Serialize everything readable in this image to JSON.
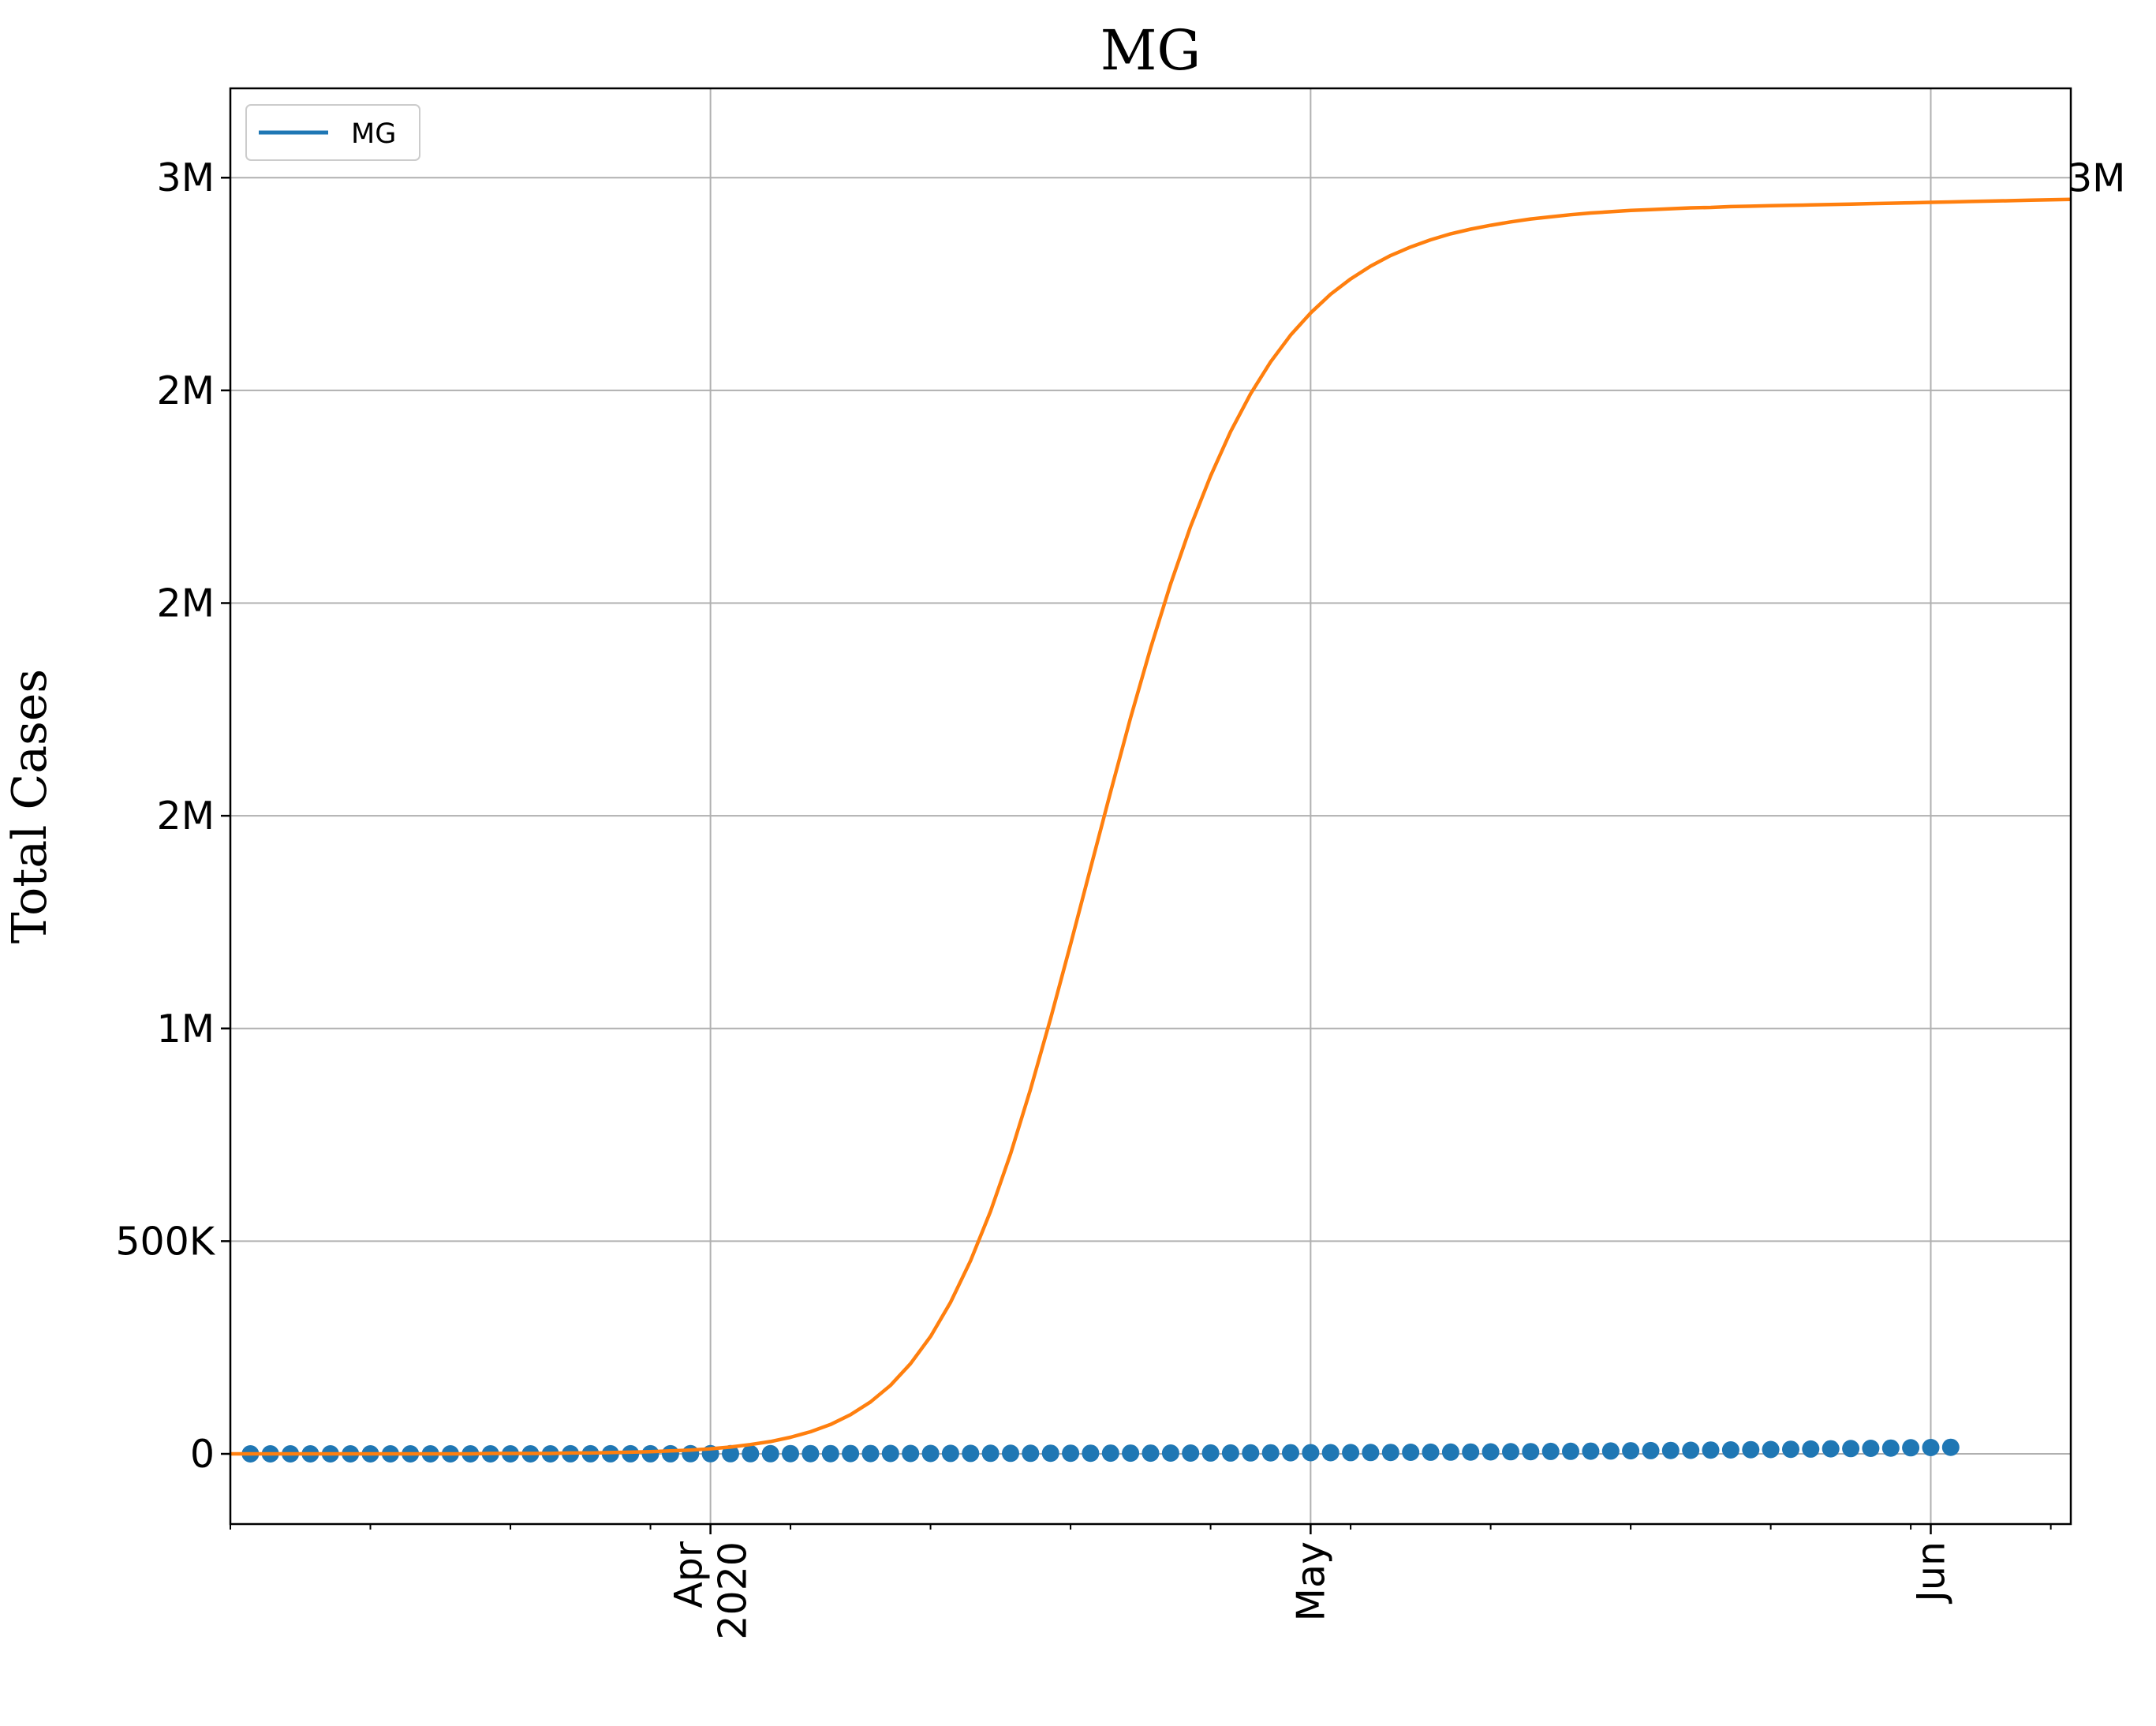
{
  "chart_data": {
    "type": "line",
    "title": "MG",
    "xlabel": "",
    "ylabel": "Total Cases",
    "x_range": [
      "2020-03-08",
      "2020-06-08"
    ],
    "ylim": [
      -165000,
      3210000
    ],
    "grid": true,
    "legend": {
      "placement": "top-left",
      "entries": [
        "MG"
      ]
    },
    "x_ticks": [
      {
        "date": "2020-04-01",
        "lines": [
          "Apr",
          "2020"
        ]
      },
      {
        "date": "2020-05-01",
        "lines": [
          "May"
        ]
      },
      {
        "date": "2020-06-01",
        "lines": [
          "Jun"
        ]
      }
    ],
    "y_ticks": [
      {
        "value": 0,
        "label": "0"
      },
      {
        "value": 500000,
        "label": "500K"
      },
      {
        "value": 1000000,
        "label": "1M"
      },
      {
        "value": 1500000,
        "label": "2M"
      },
      {
        "value": 2000000,
        "label": "2M"
      },
      {
        "value": 2500000,
        "label": "2M"
      },
      {
        "value": 3000000,
        "label": "3M"
      }
    ],
    "end_label": "3M",
    "series": [
      {
        "name": "MG",
        "kind": "scatter",
        "color": "#1f77b4",
        "x_start": "2020-03-09",
        "x_step_days": 1,
        "values": [
          1,
          1,
          1,
          1,
          2,
          4,
          7,
          15,
          20,
          29,
          38,
          55,
          83,
          103,
          128,
          133,
          153,
          189,
          205,
          231,
          261,
          314,
          370,
          397,
          430,
          486,
          498,
          525,
          559,
          614,
          698,
          803,
          879,
          940,
          1000,
          1079,
          1154,
          1248,
          1307,
          1378,
          1453,
          1526,
          1588,
          1655,
          1734,
          1795,
          1865,
          1953,
          2033,
          2131,
          2295,
          2442,
          2607,
          2793,
          2900,
          3033,
          3243,
          3460,
          3700,
          3937,
          4113,
          4360,
          4678,
          5012,
          5302,
          5700,
          6000,
          6349,
          6800,
          7221,
          7600,
          7987,
          8423,
          8924,
          9330,
          9800,
          10225,
          10757,
          11317,
          11844,
          12401,
          13034,
          13635,
          14263,
          14871,
          15500
        ]
      },
      {
        "name": "",
        "kind": "line",
        "color": "#ff7f0e",
        "x_start": "2020-03-08",
        "x_step_days": 1,
        "values": [
          0,
          0,
          0,
          0,
          0,
          0,
          0,
          0,
          0,
          0,
          0,
          0,
          0,
          1000,
          1000,
          1000,
          1000,
          2000,
          2000,
          3000,
          4000,
          5000,
          7000,
          9000,
          12000,
          16000,
          22000,
          29000,
          39000,
          52000,
          69000,
          92000,
          122000,
          161000,
          212000,
          276000,
          356000,
          454000,
          570000,
          705000,
          857000,
          1023000,
          1198000,
          1377000,
          1556000,
          1730000,
          1894000,
          2045000,
          2180000,
          2299000,
          2403000,
          2492000,
          2567000,
          2630000,
          2682000,
          2726000,
          2762000,
          2792000,
          2817000,
          2837000,
          2854000,
          2868000,
          2879000,
          2888000,
          2896000,
          2903000,
          2908000,
          2913000,
          2917000,
          2920000,
          2923000,
          2925000,
          2927000,
          2929000,
          2930000,
          2932000,
          2933000,
          2934000,
          2935000,
          2936000,
          2937000,
          2938000,
          2939000,
          2940000,
          2941000,
          2942000,
          2943000,
          2944000,
          2945000,
          2946000,
          2947000,
          2948000,
          2949000
        ]
      }
    ]
  }
}
